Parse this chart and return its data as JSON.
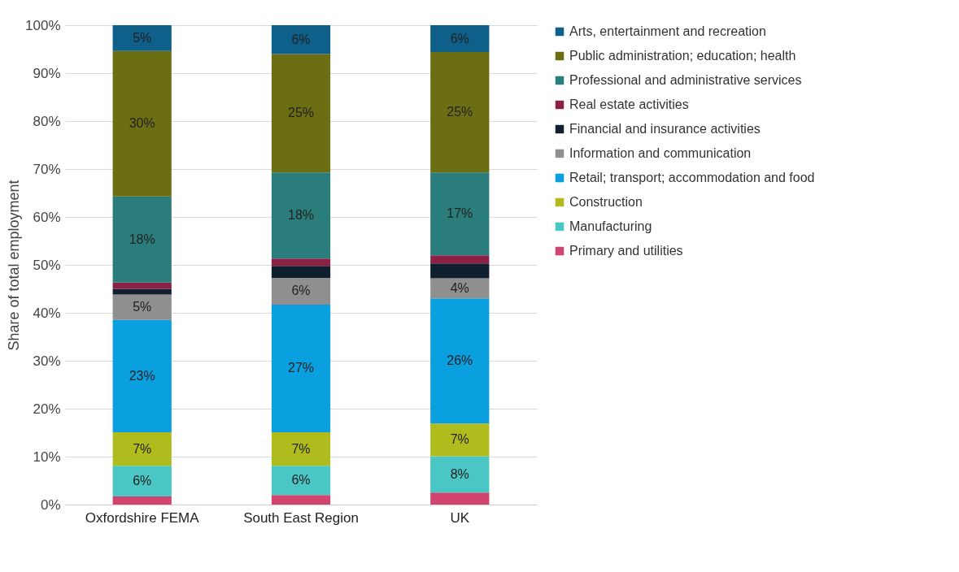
{
  "chart_data": {
    "type": "bar",
    "stacked": true,
    "ylabel": "Share of total employment",
    "categories": [
      "Oxfordshire FEMA",
      "South East Region",
      "UK"
    ],
    "ylim": [
      0,
      100
    ],
    "yticks": [
      {
        "value": 0,
        "label": "0%"
      },
      {
        "value": 10,
        "label": "10%"
      },
      {
        "value": 20,
        "label": "20%"
      },
      {
        "value": 30,
        "label": "30%"
      },
      {
        "value": 40,
        "label": "40%"
      },
      {
        "value": 50,
        "label": "50%"
      },
      {
        "value": 60,
        "label": "60%"
      },
      {
        "value": 70,
        "label": "70%"
      },
      {
        "value": 80,
        "label": "80%"
      },
      {
        "value": 90,
        "label": "90%"
      },
      {
        "value": 100,
        "label": "100%"
      }
    ],
    "grid": "y",
    "legend": "right",
    "series": [
      {
        "name": "Primary and utilities",
        "color": "#d0446e",
        "values": [
          1.7,
          2.0,
          2.5
        ],
        "value_labels": [
          null,
          null,
          null
        ]
      },
      {
        "name": "Manufacturing",
        "color": "#4ac6c4",
        "values": [
          6.4,
          6.1,
          7.6
        ],
        "value_labels": [
          "6%",
          "6%",
          "8%"
        ]
      },
      {
        "name": "Construction",
        "color": "#b0bc1e",
        "values": [
          7.0,
          7.0,
          6.8
        ],
        "value_labels": [
          "7%",
          "7%",
          "7%"
        ]
      },
      {
        "name": "Retail; transport; accommodation and food",
        "color": "#0aa0e0",
        "values": [
          23.4,
          26.6,
          26.1
        ],
        "value_labels": [
          "23%",
          "27%",
          "26%"
        ]
      },
      {
        "name": "Information and communication",
        "color": "#8f8f8f",
        "values": [
          5.3,
          5.6,
          4.2
        ],
        "value_labels": [
          "5%",
          "6%",
          "4%"
        ]
      },
      {
        "name": "Financial and insurance activities",
        "color": "#0f1f2d",
        "values": [
          1.2,
          2.5,
          3.1
        ],
        "value_labels": [
          null,
          null,
          null
        ]
      },
      {
        "name": "Real estate activities",
        "color": "#8b2246",
        "values": [
          1.3,
          1.5,
          1.7
        ],
        "value_labels": [
          null,
          null,
          null
        ]
      },
      {
        "name": "Professional and administrative services",
        "color": "#2a7d7b",
        "values": [
          18.0,
          18.0,
          17.3
        ],
        "value_labels": [
          "18%",
          "18%",
          "17%"
        ]
      },
      {
        "name": "Public administration; education; health",
        "color": "#6b6e12",
        "values": [
          30.3,
          24.7,
          25.1
        ],
        "value_labels": [
          "30%",
          "25%",
          "25%"
        ]
      },
      {
        "name": "Arts, entertainment and recreation",
        "color": "#0e5f8a",
        "values": [
          5.4,
          6.0,
          5.6
        ],
        "value_labels": [
          "5%",
          "6%",
          "6%"
        ]
      }
    ]
  }
}
